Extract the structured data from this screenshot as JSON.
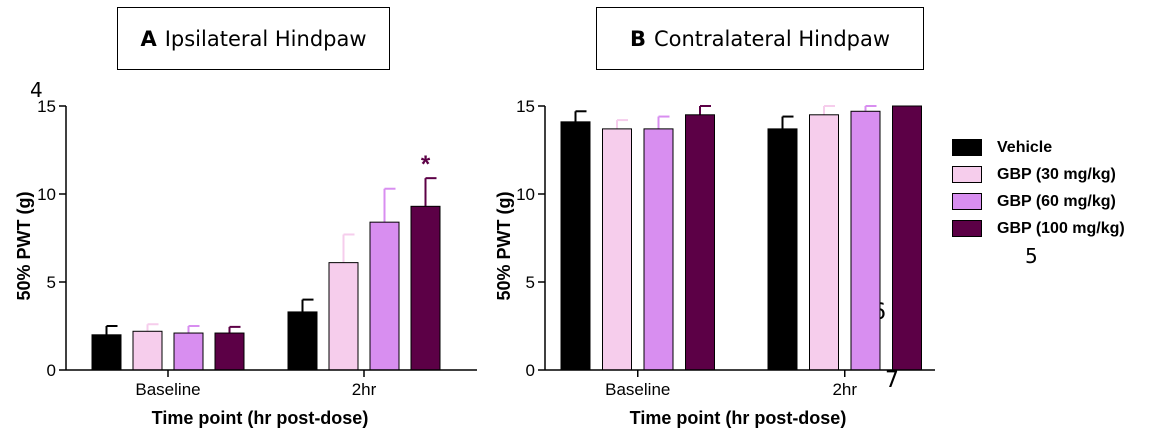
{
  "panels": [
    {
      "letter": "A",
      "title": "Ipsilateral Hindpaw"
    },
    {
      "letter": "B",
      "title": "Contralateral Hindpaw"
    }
  ],
  "stray_numbers": {
    "n4": "4",
    "n5": "5",
    "n6": "6",
    "n7": "7"
  },
  "colors": {
    "Vehicle": "#000000",
    "GBP (30 mg/kg)": "#f6cdec",
    "GBP (60 mg/kg)": "#d88ef0",
    "GBP (100 mg/kg)": "#5c0046",
    "significance": "#5c0046"
  },
  "chart_data": [
    {
      "type": "bar",
      "title": "Ipsilateral Hindpaw",
      "xlabel": "Time point (hr post-dose)",
      "ylabel": "50% PWT (g)",
      "ylim": [
        0,
        15
      ],
      "yticks": [
        0,
        5,
        10,
        15
      ],
      "categories": [
        "Baseline",
        "2hr"
      ],
      "series": [
        {
          "name": "Vehicle",
          "values": [
            2.0,
            3.3
          ],
          "errors": [
            0.5,
            0.7
          ]
        },
        {
          "name": "GBP (30 mg/kg)",
          "values": [
            2.2,
            6.1
          ],
          "errors": [
            0.4,
            1.6
          ]
        },
        {
          "name": "GBP (60 mg/kg)",
          "values": [
            2.1,
            8.4
          ],
          "errors": [
            0.4,
            1.9
          ]
        },
        {
          "name": "GBP (100 mg/kg)",
          "values": [
            2.1,
            9.3
          ],
          "errors": [
            0.35,
            1.6
          ]
        }
      ],
      "annotations": [
        {
          "category": "2hr",
          "series": "GBP (100 mg/kg)",
          "text": "*"
        }
      ]
    },
    {
      "type": "bar",
      "title": "Contralateral Hindpaw",
      "xlabel": "Time point (hr post-dose)",
      "ylabel": "50% PWT (g)",
      "ylim": [
        0,
        15
      ],
      "yticks": [
        0,
        5,
        10,
        15
      ],
      "categories": [
        "Baseline",
        "2hr"
      ],
      "series": [
        {
          "name": "Vehicle",
          "values": [
            14.1,
            13.7
          ],
          "errors": [
            0.6,
            0.7
          ]
        },
        {
          "name": "GBP (30 mg/kg)",
          "values": [
            13.7,
            14.5
          ],
          "errors": [
            0.5,
            0.5
          ]
        },
        {
          "name": "GBP (60 mg/kg)",
          "values": [
            13.7,
            14.7
          ],
          "errors": [
            0.7,
            0.3
          ]
        },
        {
          "name": "GBP (100 mg/kg)",
          "values": [
            14.5,
            15.0
          ],
          "errors": [
            0.5,
            0.0
          ]
        }
      ],
      "legend": [
        "Vehicle",
        "GBP (30 mg/kg)",
        "GBP (60 mg/kg)",
        "GBP (100 mg/kg)"
      ],
      "legend_position": "right"
    }
  ]
}
